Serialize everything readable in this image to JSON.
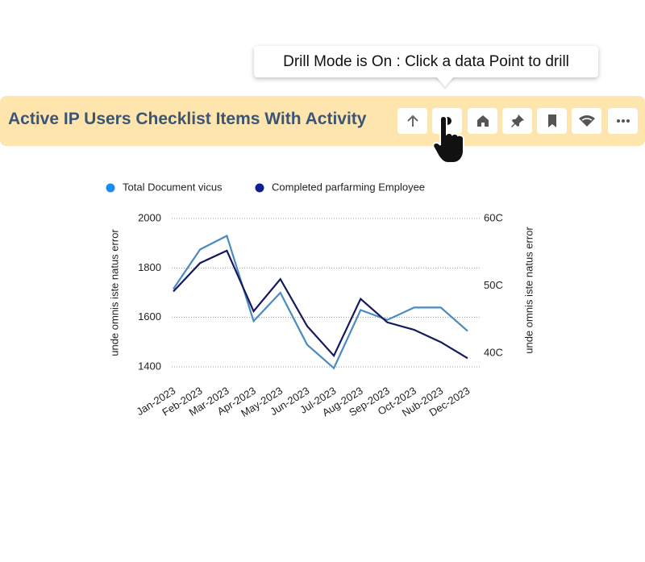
{
  "tooltip": "Drill Mode is On : Click a data Point to drill",
  "header": {
    "title": "Active IP Users Checklist Items With Activity"
  },
  "chart_data": {
    "type": "line",
    "categories": [
      "Jan-2023",
      "Feb-2023",
      "Mar-2023",
      "Apr-2023",
      "May-2023",
      "Jun-2023",
      "Jul-2023",
      "Aug-2023",
      "Sep-2023",
      "Oct-2023",
      "Nub-2023",
      "Dec-2023"
    ],
    "series": [
      {
        "name": "Total Document vicus",
        "color": "#4a8ac0",
        "values": [
          1715,
          1875,
          1930,
          1585,
          1700,
          1490,
          1395,
          1630,
          1590,
          1640,
          1640,
          1545
        ]
      },
      {
        "name": "Completed parfarming Employee",
        "color": "#15195e",
        "values": [
          1705,
          1820,
          1870,
          1625,
          1755,
          1565,
          1445,
          1675,
          1580,
          1550,
          1500,
          1435
        ]
      }
    ],
    "legend_colors": [
      "#1a8cf0",
      "#0f1f96"
    ],
    "ylabel": "unde omnis iste natus error",
    "y2label": "unde omnis iste natus error",
    "ylim": [
      1400,
      2000
    ],
    "yticks": [
      1400,
      1600,
      1800,
      2000
    ],
    "y2lim": [
      38,
      60
    ],
    "y2ticks": [
      {
        "value": 40,
        "label": "40C"
      },
      {
        "value": 50,
        "label": "50C"
      },
      {
        "value": 60,
        "label": "60C"
      }
    ],
    "grid": true,
    "legend": "top"
  }
}
